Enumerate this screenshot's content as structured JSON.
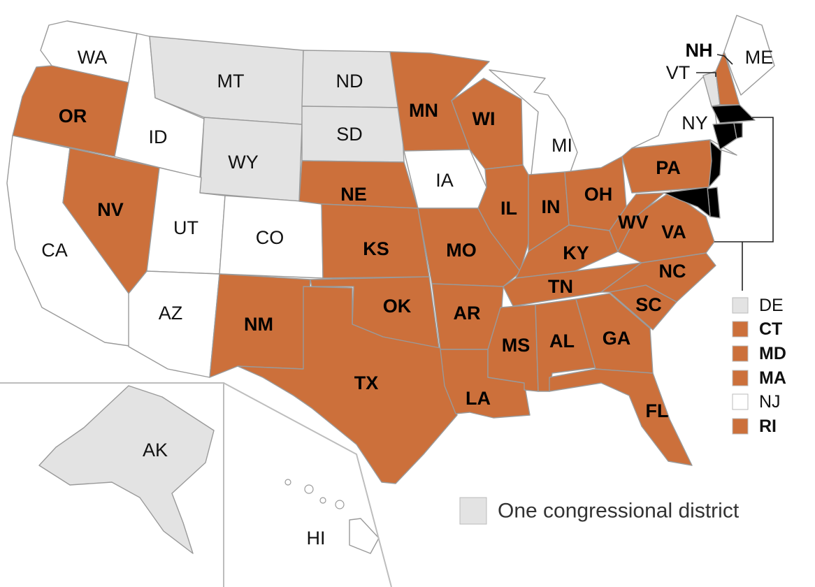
{
  "colors": {
    "orange": "#cc703b",
    "gray": "#e3e3e3",
    "white": "#ffffff",
    "border": "#9a9a9a"
  },
  "states": {
    "WA": {
      "label": "WA",
      "fill": "white",
      "bold": false
    },
    "OR": {
      "label": "OR",
      "fill": "orange",
      "bold": true
    },
    "CA": {
      "label": "CA",
      "fill": "white",
      "bold": false
    },
    "ID": {
      "label": "ID",
      "fill": "white",
      "bold": false
    },
    "NV": {
      "label": "NV",
      "fill": "orange",
      "bold": true
    },
    "MT": {
      "label": "MT",
      "fill": "gray",
      "bold": false
    },
    "WY": {
      "label": "WY",
      "fill": "gray",
      "bold": false
    },
    "UT": {
      "label": "UT",
      "fill": "white",
      "bold": false
    },
    "AZ": {
      "label": "AZ",
      "fill": "white",
      "bold": false
    },
    "CO": {
      "label": "CO",
      "fill": "white",
      "bold": false
    },
    "NM": {
      "label": "NM",
      "fill": "orange",
      "bold": true
    },
    "ND": {
      "label": "ND",
      "fill": "gray",
      "bold": false
    },
    "SD": {
      "label": "SD",
      "fill": "gray",
      "bold": false
    },
    "NE": {
      "label": "NE",
      "fill": "orange",
      "bold": true
    },
    "KS": {
      "label": "KS",
      "fill": "orange",
      "bold": true
    },
    "OK": {
      "label": "OK",
      "fill": "orange",
      "bold": true
    },
    "TX": {
      "label": "TX",
      "fill": "orange",
      "bold": true
    },
    "MN": {
      "label": "MN",
      "fill": "orange",
      "bold": true
    },
    "IA": {
      "label": "IA",
      "fill": "white",
      "bold": false
    },
    "MO": {
      "label": "MO",
      "fill": "orange",
      "bold": true
    },
    "AR": {
      "label": "AR",
      "fill": "orange",
      "bold": true
    },
    "LA": {
      "label": "LA",
      "fill": "orange",
      "bold": true
    },
    "WI": {
      "label": "WI",
      "fill": "orange",
      "bold": true
    },
    "IL": {
      "label": "IL",
      "fill": "orange",
      "bold": true
    },
    "MI": {
      "label": "MI",
      "fill": "white",
      "bold": false
    },
    "IN": {
      "label": "IN",
      "fill": "orange",
      "bold": true
    },
    "OH": {
      "label": "OH",
      "fill": "orange",
      "bold": true
    },
    "KY": {
      "label": "KY",
      "fill": "orange",
      "bold": true
    },
    "TN": {
      "label": "TN",
      "fill": "orange",
      "bold": true
    },
    "MS": {
      "label": "MS",
      "fill": "orange",
      "bold": true
    },
    "AL": {
      "label": "AL",
      "fill": "orange",
      "bold": true
    },
    "GA": {
      "label": "GA",
      "fill": "orange",
      "bold": true
    },
    "FL": {
      "label": "FL",
      "fill": "orange",
      "bold": true
    },
    "SC": {
      "label": "SC",
      "fill": "orange",
      "bold": true
    },
    "NC": {
      "label": "NC",
      "fill": "orange",
      "bold": true
    },
    "VA": {
      "label": "VA",
      "fill": "orange",
      "bold": true
    },
    "WV": {
      "label": "WV",
      "fill": "orange",
      "bold": true
    },
    "PA": {
      "label": "PA",
      "fill": "orange",
      "bold": true
    },
    "NY": {
      "label": "NY",
      "fill": "white",
      "bold": false
    },
    "VT": {
      "label": "VT",
      "fill": "gray",
      "bold": false
    },
    "NH": {
      "label": "NH",
      "fill": "orange",
      "bold": true
    },
    "ME": {
      "label": "ME",
      "fill": "white",
      "bold": false
    },
    "AK": {
      "label": "AK",
      "fill": "gray",
      "bold": false
    },
    "HI": {
      "label": "HI",
      "fill": "white",
      "bold": false
    }
  },
  "small_states": [
    {
      "label": "DE",
      "fill": "gray",
      "bold": false
    },
    {
      "label": "CT",
      "fill": "orange",
      "bold": true
    },
    {
      "label": "MD",
      "fill": "orange",
      "bold": true
    },
    {
      "label": "MA",
      "fill": "orange",
      "bold": true
    },
    {
      "label": "NJ",
      "fill": "white",
      "bold": false
    },
    {
      "label": "RI",
      "fill": "orange",
      "bold": true
    }
  ],
  "legend": {
    "label": "One congressional district",
    "fill": "gray"
  }
}
